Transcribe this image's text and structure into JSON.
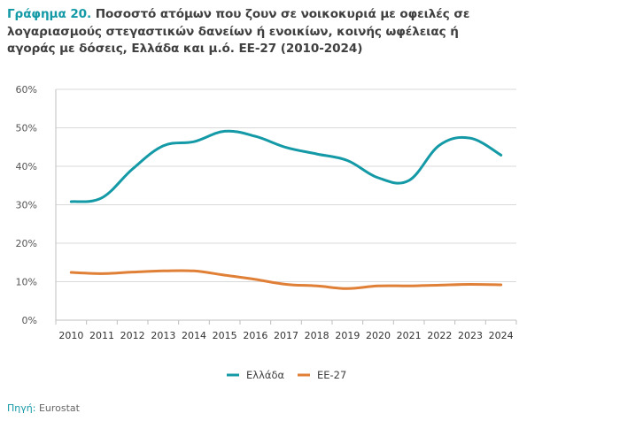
{
  "header": {
    "figure_label": "Γράφημα 20.",
    "title": "Ποσοστό ατόμων που ζουν σε νοικοκυριά με οφειλές σε λογαριασμούς στεγαστικών δανείων ή ενοικίων, κοινής ωφέλειας ή αγοράς με δόσεις, Ελλάδα και μ.ό. ΕΕ-27 (2010-2024)"
  },
  "colors": {
    "accent": "#1499a6",
    "greece": "#1499a6",
    "eu27": "#e07f36",
    "grid": "#d9d9d9",
    "axis": "#bfbfbf"
  },
  "chart_data": {
    "type": "line",
    "title": "Γράφημα 20. Ποσοστό ατόμων που ζουν σε νοικοκυριά με οφειλές σε λογαριασμούς στεγαστικών δανείων ή ενοικίων, κοινής ωφέλειας ή αγοράς με δόσεις, Ελλάδα και μ.ό. ΕΕ-27 (2010-2024)",
    "xlabel": "",
    "ylabel": "",
    "x": [
      "2010",
      "2011",
      "2012",
      "2013",
      "2014",
      "2015",
      "2016",
      "2017",
      "2018",
      "2019",
      "2020",
      "2021",
      "2022",
      "2023",
      "2024"
    ],
    "ylim": [
      0,
      60
    ],
    "yticks": [
      0,
      10,
      20,
      30,
      40,
      50,
      60
    ],
    "ytick_labels": [
      "0%",
      "10%",
      "20%",
      "30%",
      "40%",
      "50%",
      "60%"
    ],
    "grid": true,
    "legend_position": "bottom-center",
    "series": [
      {
        "name": "Ελλάδα",
        "color": "#1499a6",
        "values": [
          30.8,
          31.8,
          39.3,
          45.3,
          46.4,
          49.1,
          47.8,
          44.9,
          43.2,
          41.5,
          37.0,
          36.3,
          45.5,
          47.3,
          42.9
        ]
      },
      {
        "name": "ΕΕ-27",
        "color": "#e07f36",
        "values": [
          12.4,
          12.1,
          12.5,
          12.8,
          12.8,
          11.7,
          10.6,
          9.3,
          8.9,
          8.2,
          8.9,
          8.9,
          9.1,
          9.3,
          9.2
        ]
      }
    ]
  },
  "source": {
    "label": "Πηγή:",
    "value": "Eurostat"
  }
}
